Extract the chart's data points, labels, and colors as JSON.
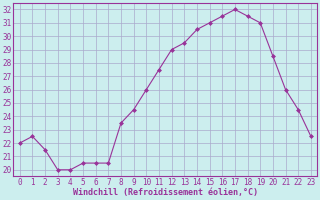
{
  "x": [
    0,
    1,
    2,
    3,
    4,
    5,
    6,
    7,
    8,
    9,
    10,
    11,
    12,
    13,
    14,
    15,
    16,
    17,
    18,
    19,
    20,
    21,
    22,
    23
  ],
  "y": [
    22,
    22.5,
    21.5,
    20,
    20,
    20.5,
    20.5,
    20.5,
    23.5,
    24.5,
    26,
    27.5,
    29,
    29.5,
    30.5,
    31,
    31.5,
    32,
    31.5,
    31,
    28.5,
    26,
    24.5,
    22.5
  ],
  "line_color": "#993399",
  "marker_color": "#993399",
  "bg_color": "#cceeee",
  "grid_color": "#aaaacc",
  "ylabel_ticks": [
    20,
    21,
    22,
    23,
    24,
    25,
    26,
    27,
    28,
    29,
    30,
    31,
    32
  ],
  "xlabel": "Windchill (Refroidissement éolien,°C)",
  "ylim": [
    19.5,
    32.5
  ],
  "xlim": [
    -0.5,
    23.5
  ],
  "tick_fontsize": 5.5,
  "xlabel_fontsize": 6.0,
  "tick_color": "#993399",
  "label_color": "#993399"
}
